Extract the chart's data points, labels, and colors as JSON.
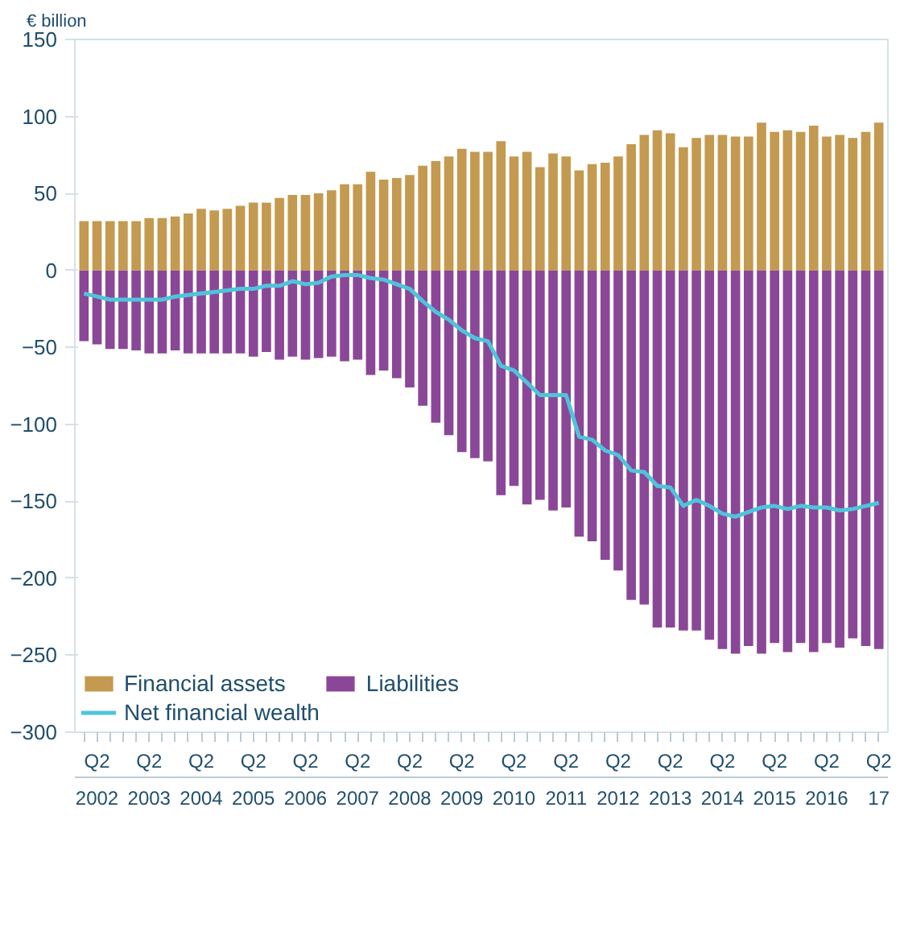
{
  "chart_data": {
    "type": "bar",
    "ylabel": "€ billion",
    "stacked": true,
    "legend": "bottom",
    "grid": false,
    "categories": [
      null,
      "Q2\n2002",
      null,
      null,
      null,
      "Q2\n2003",
      null,
      null,
      null,
      "Q2\n2004",
      null,
      null,
      null,
      "Q2\n2005",
      null,
      null,
      null,
      "Q2\n2006",
      null,
      null,
      null,
      "Q2\n2007",
      null,
      null,
      null,
      "Q2\n2008",
      null,
      null,
      null,
      "Q2\n2009",
      null,
      null,
      null,
      "Q2\n2010",
      null,
      null,
      null,
      "Q2\n2011",
      null,
      null,
      null,
      "Q2\n2012",
      null,
      null,
      null,
      "Q2\n2013",
      null,
      null,
      null,
      "Q2\n2014",
      null,
      null,
      null,
      "Q2\n2015",
      null,
      null,
      null,
      "Q2\n2016",
      null,
      null,
      null,
      "Q2\n17"
    ],
    "ylim": [
      -300,
      150
    ],
    "yticks": [
      -300,
      -250,
      -200,
      -150,
      -100,
      -50,
      0,
      50,
      100,
      150
    ],
    "series": [
      {
        "name": "Financial assets",
        "color": "#c39a4f",
        "values": [
          32,
          32,
          32,
          32,
          32,
          34,
          34,
          35,
          37,
          40,
          39,
          40,
          42,
          44,
          44,
          47,
          49,
          49,
          50,
          52,
          56,
          56,
          64,
          59,
          60,
          62,
          68,
          71,
          74,
          79,
          77,
          77,
          84,
          74,
          77,
          67,
          76,
          74,
          65,
          69,
          70,
          74,
          82,
          88,
          91,
          89,
          80,
          86,
          88,
          88,
          87,
          87,
          96,
          90,
          91,
          90,
          94,
          87,
          88,
          86,
          90,
          96
        ]
      },
      {
        "name": "Liabilities",
        "color": "#8a4797",
        "values": [
          -46,
          -48,
          -51,
          -51,
          -52,
          -54,
          -54,
          -52,
          -54,
          -54,
          -54,
          -54,
          -54,
          -56,
          -53,
          -58,
          -56,
          -58,
          -57,
          -56,
          -59,
          -58,
          -68,
          -65,
          -70,
          -76,
          -88,
          -99,
          -107,
          -118,
          -122,
          -124,
          -146,
          -140,
          -152,
          -149,
          -156,
          -154,
          -173,
          -176,
          -188,
          -195,
          -214,
          -217,
          -232,
          -232,
          -234,
          -234,
          -240,
          -246,
          -249,
          -244,
          -249,
          -242,
          -248,
          -242,
          -248,
          -242,
          -245,
          -239,
          -244,
          -246
        ]
      },
      {
        "name": "Net financial wealth",
        "type": "line",
        "color": "#4fc3dc",
        "values": [
          -15,
          -17,
          -19,
          -19,
          -19,
          -19,
          -19,
          -17,
          -16,
          -15,
          -14,
          -13,
          -12,
          -12,
          -10,
          -10,
          -7,
          -9,
          -8,
          -4,
          -3,
          -3,
          -5,
          -6,
          -9,
          -12,
          -20,
          -27,
          -32,
          -39,
          -44,
          -46,
          -62,
          -65,
          -73,
          -81,
          -81,
          -81,
          -108,
          -110,
          -117,
          -120,
          -130,
          -131,
          -140,
          -141,
          -153,
          -149,
          -153,
          -158,
          -160,
          -157,
          -154,
          -153,
          -155,
          -153,
          -154,
          -154,
          -156,
          -155,
          -153,
          -151
        ]
      }
    ]
  }
}
